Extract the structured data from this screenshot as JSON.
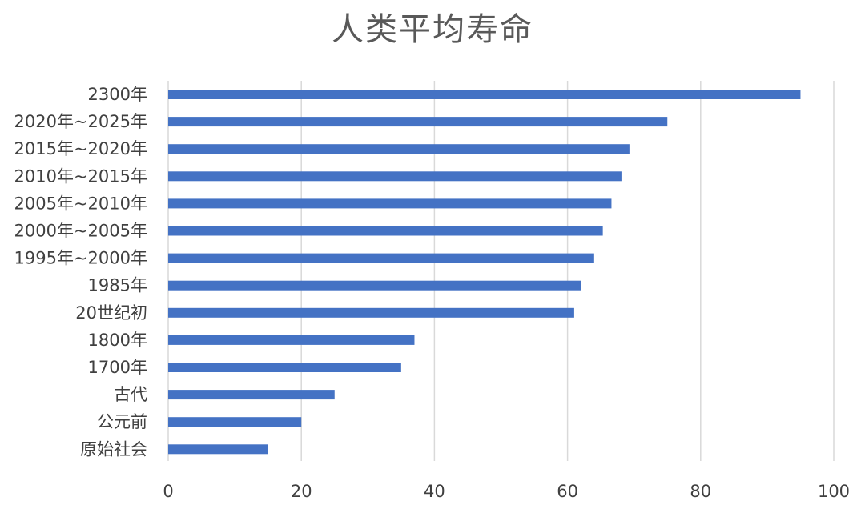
{
  "chart_data": {
    "type": "bar",
    "orientation": "horizontal",
    "title": "人类平均寿命",
    "categories": [
      "2300年",
      "2020年~2025年",
      "2015年~2020年",
      "2010年~2015年",
      "2005年~2010年",
      "2000年~2005年",
      "1995年~2000年",
      "1985年",
      "20世纪初",
      "1800年",
      "1700年",
      "古代",
      "公元前",
      "原始社会"
    ],
    "values": [
      95,
      75,
      69.3,
      68.1,
      66.6,
      65.3,
      64,
      62,
      61,
      37,
      35,
      25,
      20,
      15
    ],
    "xlim": [
      0,
      100
    ],
    "xticks": [
      0,
      20,
      40,
      60,
      80,
      100
    ],
    "grid": true,
    "legend": "none",
    "bar_color": "#4472c4"
  }
}
